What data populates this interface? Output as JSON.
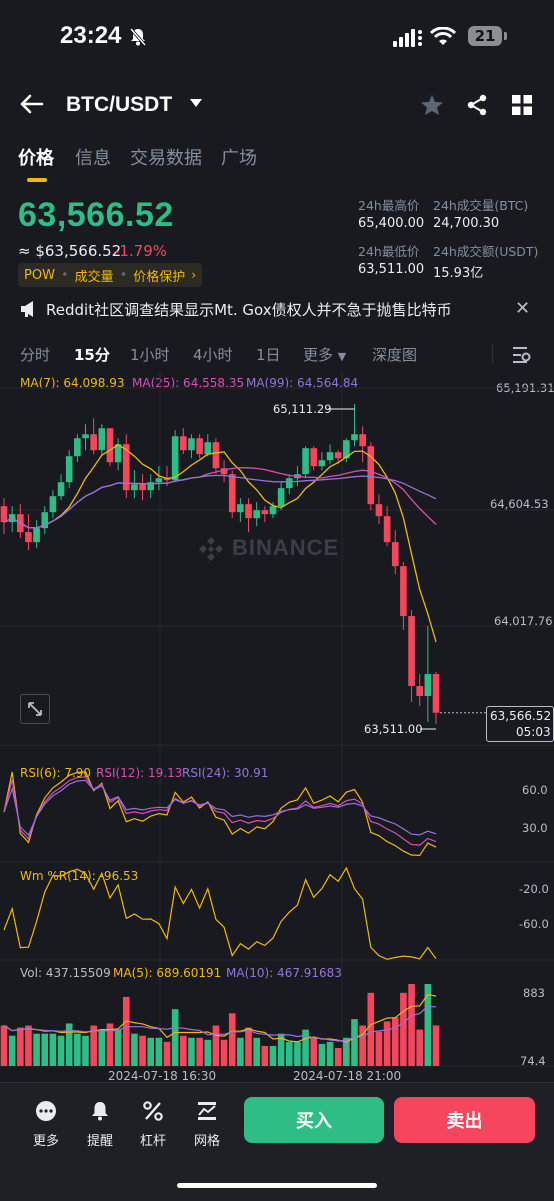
{
  "status": {
    "time": "23:24",
    "battery": "21"
  },
  "header": {
    "pair": "BTC/USDT"
  },
  "tabs": [
    "价格",
    "信息",
    "交易数据",
    "广场"
  ],
  "price": {
    "last": "63,566.52",
    "usd": "≈ $63,566.52",
    "change": "-1.79%",
    "tags": [
      "POW",
      "成交量",
      "价格保护"
    ]
  },
  "stats": {
    "high_label": "24h最高价",
    "high": "65,400.00",
    "low_label": "24h最低价",
    "low": "63,511.00",
    "vol_btc_label": "24h成交量(BTC)",
    "vol_btc": "24,700.30",
    "vol_usdt_label": "24h成交额(USDT)",
    "vol_usdt": "15.93亿"
  },
  "notice": {
    "text": "Reddit社区调查结果显示Mt. Gox债权人并不急于抛售比特币"
  },
  "intervals": [
    "分时",
    "15分",
    "1小时",
    "4小时",
    "1日",
    "更多",
    "深度图"
  ],
  "chart_meta": {
    "ma7": "MA(7): 64,098.93",
    "ma25": "MA(25): 64,558.35",
    "ma99": "MA(99): 64,564.84",
    "price_axis": [
      "65,191.31",
      "64,604.53",
      "64,017.76"
    ],
    "high_mark": "65,111.29",
    "low_mark": "63,511.00",
    "current": "63,566.52",
    "countdown": "05:03",
    "watermark": "BINANCE",
    "rsi6": "RSI(6): 7.90",
    "rsi12": "RSI(12): 19.13",
    "rsi24": "RSI(24): 30.91",
    "rsi_axis": [
      "60.0",
      "30.0"
    ],
    "wr": "Wm %R(14): -96.53",
    "wr_axis": [
      "-20.0",
      "-60.0"
    ],
    "vol": "Vol: 437.15509",
    "vol_ma5": "MA(5): 689.60191",
    "vol_ma10": "MA(10): 467.91683",
    "vol_axis": [
      "883",
      "74.4"
    ],
    "dates": [
      "2024-07-18 16:30",
      "2024-07-18 21:00"
    ],
    "colors": {
      "up": "#2ebd85",
      "down": "#f6465d",
      "ma7": "#f0b90b",
      "ma25": "#d64fb4",
      "ma99": "#9673d9"
    }
  },
  "chart_data": {
    "type": "candlestick",
    "interval": "15分",
    "candles_ohlc": [
      [
        64600,
        64640,
        64460,
        64520
      ],
      [
        64520,
        64600,
        64470,
        64560
      ],
      [
        64560,
        64610,
        64440,
        64470
      ],
      [
        64470,
        64560,
        64380,
        64420
      ],
      [
        64420,
        64530,
        64390,
        64490
      ],
      [
        64490,
        64600,
        64460,
        64570
      ],
      [
        64570,
        64680,
        64540,
        64650
      ],
      [
        64650,
        64760,
        64630,
        64720
      ],
      [
        64720,
        64880,
        64690,
        64850
      ],
      [
        64850,
        64960,
        64820,
        64940
      ],
      [
        64940,
        65010,
        64880,
        64960
      ],
      [
        64960,
        65040,
        64860,
        64880
      ],
      [
        64880,
        65010,
        64850,
        64990
      ],
      [
        64990,
        64990,
        64800,
        64820
      ],
      [
        64820,
        64940,
        64780,
        64910
      ],
      [
        64910,
        64960,
        64640,
        64680
      ],
      [
        64680,
        64780,
        64640,
        64710
      ],
      [
        64710,
        64760,
        64630,
        64680
      ],
      [
        64680,
        64760,
        64640,
        64720
      ],
      [
        64720,
        64800,
        64680,
        64740
      ],
      [
        64740,
        64800,
        64700,
        64730
      ],
      [
        64730,
        64980,
        64720,
        64950
      ],
      [
        64950,
        64990,
        64860,
        64880
      ],
      [
        64880,
        64960,
        64840,
        64940
      ],
      [
        64940,
        64960,
        64840,
        64860
      ],
      [
        64860,
        64960,
        64850,
        64920
      ],
      [
        64920,
        64940,
        64760,
        64790
      ],
      [
        64790,
        64830,
        64720,
        64760
      ],
      [
        64760,
        64780,
        64540,
        64570
      ],
      [
        64570,
        64640,
        64520,
        64610
      ],
      [
        64610,
        64640,
        64470,
        64540
      ],
      [
        64540,
        64620,
        64500,
        64580
      ],
      [
        64580,
        64600,
        64520,
        64560
      ],
      [
        64560,
        64620,
        64540,
        64600
      ],
      [
        64600,
        64720,
        64580,
        64690
      ],
      [
        64690,
        64760,
        64660,
        64740
      ],
      [
        64740,
        64800,
        64700,
        64760
      ],
      [
        64760,
        64900,
        64740,
        64890
      ],
      [
        64890,
        64900,
        64780,
        64800
      ],
      [
        64800,
        64870,
        64780,
        64830
      ],
      [
        64830,
        64910,
        64810,
        64870
      ],
      [
        64870,
        64880,
        64810,
        64840
      ],
      [
        64840,
        64940,
        64820,
        64930
      ],
      [
        64930,
        65111.29,
        64900,
        64960
      ],
      [
        64960,
        65000,
        64820,
        64900
      ],
      [
        64900,
        64920,
        64580,
        64610
      ],
      [
        64610,
        64660,
        64510,
        64550
      ],
      [
        64550,
        64600,
        64400,
        64420
      ],
      [
        64420,
        64480,
        64260,
        64300
      ],
      [
        64300,
        64320,
        63980,
        64050
      ],
      [
        64050,
        64080,
        63620,
        63700
      ],
      [
        63700,
        63760,
        63600,
        63650
      ],
      [
        63650,
        64000,
        63520,
        63760
      ],
      [
        63760,
        63770,
        63511.0,
        63566.52
      ]
    ],
    "ylim": [
      63470,
      65191.31
    ],
    "price_ticks": [
      65191.31,
      64604.53,
      64017.76
    ],
    "rsi": {
      "ylim": [
        0,
        100
      ],
      "ticks": [
        60.0,
        30.0
      ],
      "rsi6_last": 7.9,
      "rsi12_last": 19.13,
      "rsi24_last": 30.91
    },
    "wr": {
      "ylim": [
        -100,
        0
      ],
      "ticks": [
        -20.0,
        -60.0
      ],
      "last": -96.53
    },
    "volume": {
      "ticks": [
        883,
        74.4
      ],
      "last": 437.15509,
      "ma5_last": 689.60191,
      "ma10_last": 467.91683
    }
  },
  "bottom_nav": [
    "更多",
    "提醒",
    "杠杆",
    "网格"
  ],
  "actions": {
    "buy": "买入",
    "sell": "卖出"
  }
}
